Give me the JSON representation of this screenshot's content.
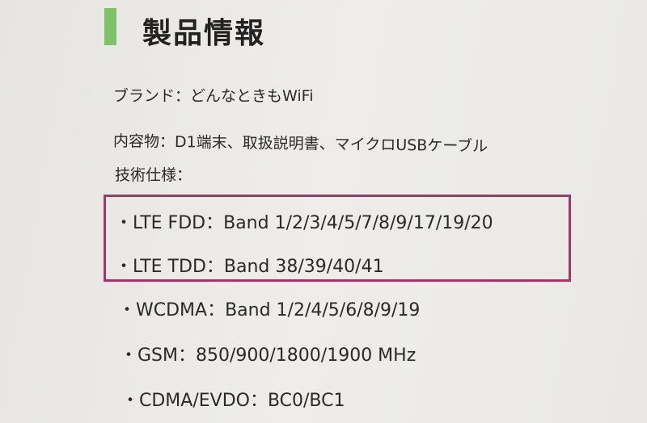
{
  "section": {
    "title": "製品情報",
    "accent_color": "#7cc36a"
  },
  "info": [
    "ブランド：どんなときもWiFi",
    "内容物：D1端末、取扱説明書、マイクロUSBケーブル",
    "技術仕様："
  ],
  "specs": [
    "・LTE FDD：Band 1/2/3/4/5/7/8/9/17/19/20",
    "・LTE TDD：Band 38/39/40/41",
    "・WCDMA：Band 1/2/4/5/6/8/9/19",
    "・GSM：850/900/1800/1900 MHz",
    "・CDMA/EVDO：BC0/BC1"
  ],
  "highlight_color": "#a53468"
}
